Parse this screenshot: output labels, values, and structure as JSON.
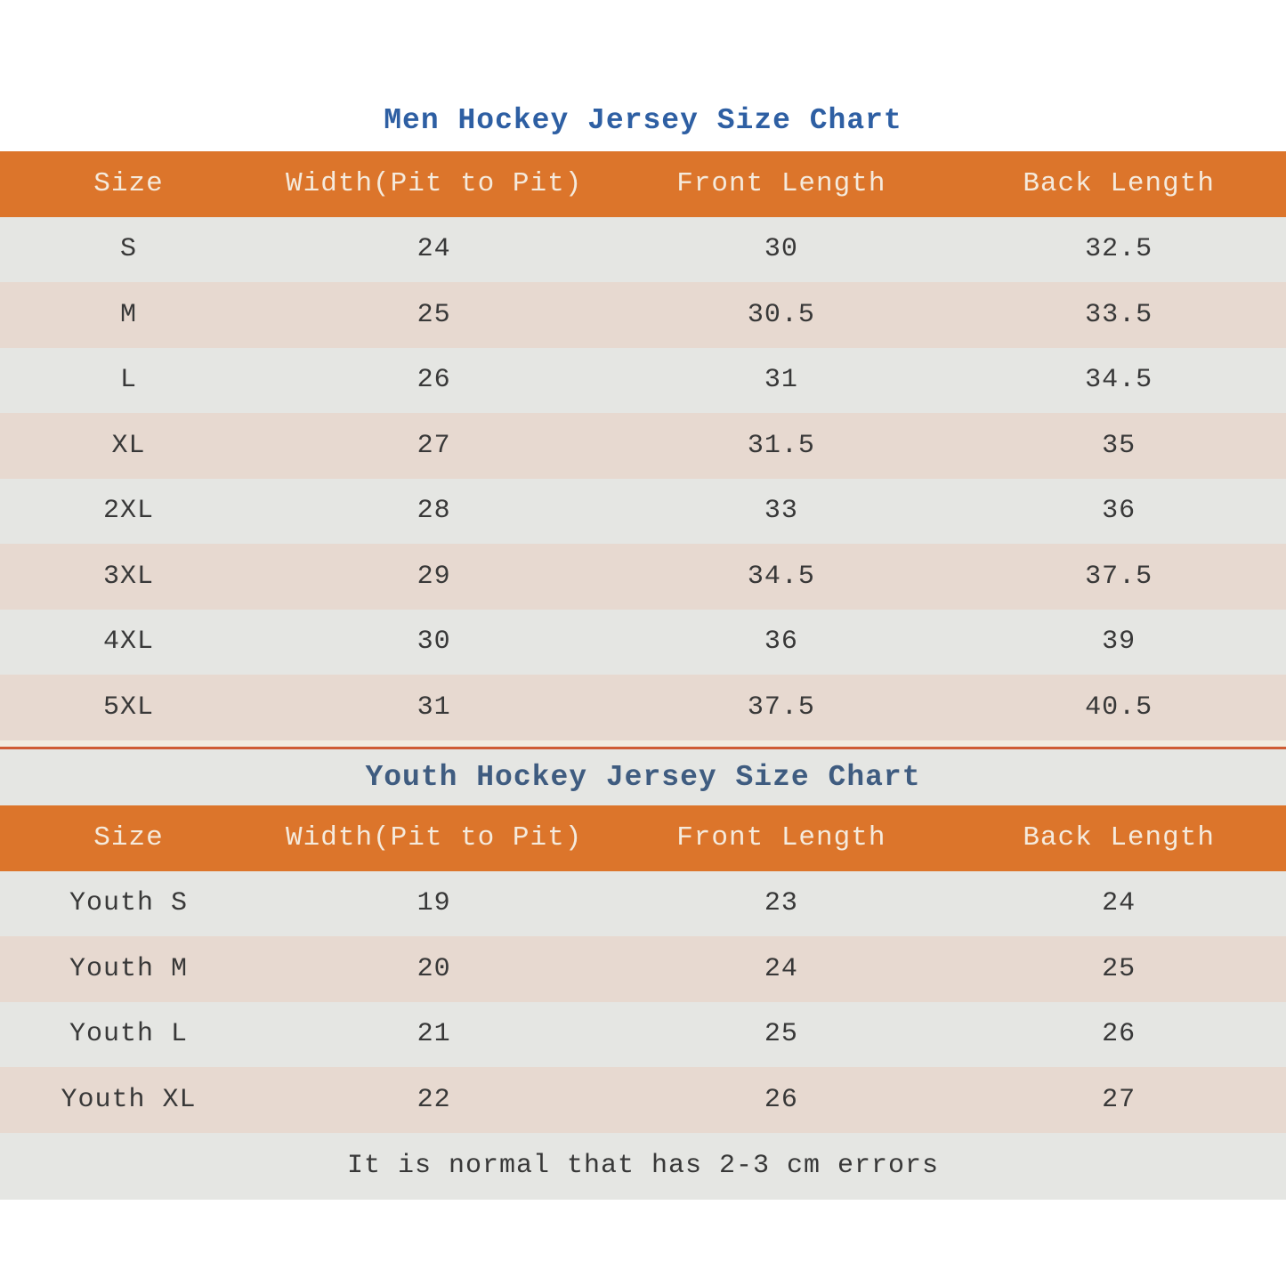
{
  "chart_data": [
    {
      "type": "table",
      "title": "Men Hockey Jersey Size Chart",
      "columns": [
        "Size",
        "Width(Pit to Pit)",
        "Front Length",
        "Back Length"
      ],
      "rows": [
        [
          "S",
          "24",
          "30",
          "32.5"
        ],
        [
          "M",
          "25",
          "30.5",
          "33.5"
        ],
        [
          "L",
          "26",
          "31",
          "34.5"
        ],
        [
          "XL",
          "27",
          "31.5",
          "35"
        ],
        [
          "2XL",
          "28",
          "33",
          "36"
        ],
        [
          "3XL",
          "29",
          "34.5",
          "37.5"
        ],
        [
          "4XL",
          "30",
          "36",
          "39"
        ],
        [
          "5XL",
          "31",
          "37.5",
          "40.5"
        ]
      ]
    },
    {
      "type": "table",
      "title": "Youth Hockey Jersey Size Chart",
      "columns": [
        "Size",
        "Width(Pit to Pit)",
        "Front Length",
        "Back Length"
      ],
      "rows": [
        [
          "Youth S",
          "19",
          "23",
          "24"
        ],
        [
          "Youth M",
          "20",
          "24",
          "25"
        ],
        [
          "Youth L",
          "21",
          "25",
          "26"
        ],
        [
          "Youth XL",
          "22",
          "26",
          "27"
        ]
      ]
    }
  ],
  "note": "It is normal that has 2-3 cm errors",
  "colors": {
    "header_bg": "#DC752B",
    "header_text": "#F5EADC",
    "row_gray": "#E5E6E3",
    "row_tan": "#E7D9D0",
    "men_title_blue": "#2E5FA3",
    "youth_title_blue": "#3F5C80",
    "body_text": "#383838",
    "separator_line": "#CE5C33"
  }
}
